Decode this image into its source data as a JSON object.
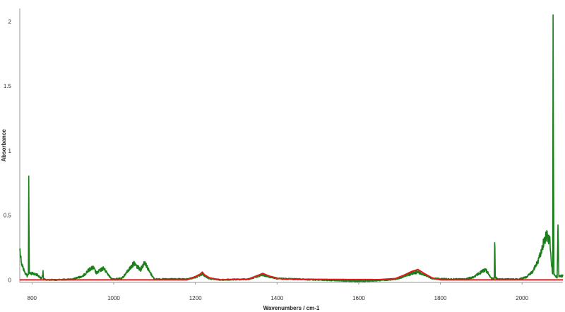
{
  "chart_data": {
    "type": "line",
    "xlabel": "Wavenumbers / cm-1",
    "ylabel": "Absorbance",
    "xlim": [
      770,
      2100
    ],
    "ylim": [
      -0.02,
      2.1
    ],
    "xticks": [
      800,
      1000,
      1200,
      1400,
      1600,
      1800,
      2000
    ],
    "yticks": [
      0,
      0.5,
      1,
      1.5,
      2
    ],
    "grid": false,
    "legend": "none",
    "series": [
      {
        "color": "#1a7f1a",
        "noisy": true,
        "points": [
          [
            770,
            0.24
          ],
          [
            775,
            0.12
          ],
          [
            782,
            0.06
          ],
          [
            788,
            0.03
          ],
          [
            791,
            0.05
          ],
          [
            792,
            0.81
          ],
          [
            793.5,
            0.05
          ],
          [
            797,
            0.05
          ],
          [
            805,
            0.045
          ],
          [
            812,
            0.04
          ],
          [
            818,
            0.025
          ],
          [
            823,
            0.01
          ],
          [
            826,
            0.035
          ],
          [
            827,
            0.06
          ],
          [
            828,
            0.01
          ],
          [
            835,
            0.0
          ],
          [
            860,
            0.0
          ],
          [
            900,
            0.005
          ],
          [
            925,
            0.03
          ],
          [
            940,
            0.08
          ],
          [
            950,
            0.095
          ],
          [
            958,
            0.05
          ],
          [
            965,
            0.07
          ],
          [
            975,
            0.09
          ],
          [
            985,
            0.05
          ],
          [
            995,
            0.005
          ],
          [
            1020,
            0.01
          ],
          [
            1040,
            0.09
          ],
          [
            1050,
            0.13
          ],
          [
            1058,
            0.1
          ],
          [
            1066,
            0.08
          ],
          [
            1076,
            0.14
          ],
          [
            1088,
            0.06
          ],
          [
            1100,
            0.005
          ],
          [
            1180,
            0.005
          ],
          [
            1200,
            0.02
          ],
          [
            1212,
            0.035
          ],
          [
            1218,
            0.05
          ],
          [
            1223,
            0.03
          ],
          [
            1235,
            0.01
          ],
          [
            1260,
            0.0
          ],
          [
            1330,
            0.005
          ],
          [
            1350,
            0.025
          ],
          [
            1365,
            0.04
          ],
          [
            1380,
            0.025
          ],
          [
            1400,
            0.01
          ],
          [
            1450,
            0.005
          ],
          [
            1500,
            0.0
          ],
          [
            1550,
            -0.005
          ],
          [
            1600,
            -0.01
          ],
          [
            1650,
            -0.005
          ],
          [
            1690,
            0.005
          ],
          [
            1710,
            0.025
          ],
          [
            1730,
            0.05
          ],
          [
            1745,
            0.06
          ],
          [
            1760,
            0.04
          ],
          [
            1780,
            0.01
          ],
          [
            1820,
            0.005
          ],
          [
            1860,
            0.005
          ],
          [
            1880,
            0.02
          ],
          [
            1895,
            0.05
          ],
          [
            1910,
            0.08
          ],
          [
            1920,
            0.04
          ],
          [
            1925,
            0.01
          ],
          [
            1932,
            0.01
          ],
          [
            1933,
            0.33
          ],
          [
            1934.5,
            0.02
          ],
          [
            1940,
            0.005
          ],
          [
            1990,
            0.005
          ],
          [
            2010,
            0.02
          ],
          [
            2025,
            0.06
          ],
          [
            2040,
            0.15
          ],
          [
            2052,
            0.28
          ],
          [
            2060,
            0.35
          ],
          [
            2068,
            0.3
          ],
          [
            2072,
            0.12
          ],
          [
            2075,
            0.05
          ],
          [
            2076,
            2.0
          ],
          [
            2078,
            0.05
          ],
          [
            2081,
            0.03
          ],
          [
            2086,
            0.02
          ],
          [
            2088,
            0.46
          ],
          [
            2090,
            0.03
          ],
          [
            2100,
            0.03
          ]
        ]
      },
      {
        "color": "#e31a1c",
        "noisy": false,
        "points": [
          [
            770,
            0.0
          ],
          [
            1180,
            0.0
          ],
          [
            1200,
            0.025
          ],
          [
            1212,
            0.045
          ],
          [
            1217,
            0.06
          ],
          [
            1222,
            0.04
          ],
          [
            1235,
            0.015
          ],
          [
            1260,
            0.0
          ],
          [
            1330,
            0.005
          ],
          [
            1350,
            0.03
          ],
          [
            1365,
            0.05
          ],
          [
            1380,
            0.03
          ],
          [
            1400,
            0.01
          ],
          [
            1450,
            0.005
          ],
          [
            1550,
            0.003
          ],
          [
            1650,
            0.002
          ],
          [
            1690,
            0.01
          ],
          [
            1710,
            0.035
          ],
          [
            1730,
            0.065
          ],
          [
            1745,
            0.08
          ],
          [
            1760,
            0.05
          ],
          [
            1780,
            0.015
          ],
          [
            1800,
            0.0
          ],
          [
            2100,
            0.0
          ]
        ]
      }
    ]
  }
}
